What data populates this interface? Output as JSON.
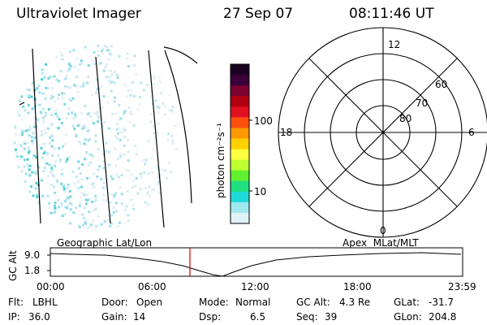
{
  "header": {
    "title": "Ultraviolet Imager",
    "date": "27 Sep 07",
    "time": "08:11:46 UT"
  },
  "colorbar": {
    "unit_label": "photon cm⁻²s⁻¹",
    "ticks": [
      "100",
      "10"
    ],
    "colors": [
      "#1a0020",
      "#3a003a",
      "#7a0030",
      "#b00010",
      "#e01020",
      "#ff5010",
      "#ff9a00",
      "#ffd000",
      "#ffff40",
      "#c0ff30",
      "#60f030",
      "#20e080",
      "#20d8d8",
      "#a0e8f0",
      "#e0f4f8"
    ]
  },
  "polar": {
    "mlt_labels": {
      "top": "12",
      "right": "6",
      "bottom": "0",
      "left": "18"
    },
    "lat_labels": [
      "60",
      "70",
      "80"
    ]
  },
  "altitude_panel": {
    "left_label": "Geographic Lat/Lon",
    "right_label": "Apex  MLat/MLT",
    "axis_label": "GC Alt",
    "y_ticks": [
      "9.0",
      "1.8"
    ],
    "x_ticks": [
      "00:00",
      "06:00",
      "12:00",
      "18:00",
      "23:59"
    ],
    "marker_color": "#d00000"
  },
  "status": {
    "flt_label": "Flt:",
    "flt_value": "LBHL",
    "door_label": "Door:",
    "door_value": "Open",
    "mode_label": "Mode:",
    "mode_value": "Normal",
    "gcalt_label": "GC Alt:",
    "gcalt_value": "4.3 Re",
    "glat_label": "GLat:",
    "glat_value": "-31.7",
    "ip_label": "IP:",
    "ip_value": "36.0",
    "gain_label": "Gain:",
    "gain_value": "14",
    "dsp_label": "Dsp:",
    "dsp_value": "6.5",
    "seq_label": "Seq:",
    "seq_value": "39",
    "glon_label": "GLon:",
    "glon_value": "204.8"
  }
}
